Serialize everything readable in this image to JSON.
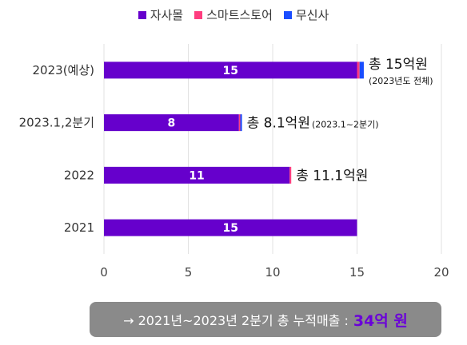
{
  "chart_data": {
    "type": "bar",
    "orientation": "horizontal",
    "stacked": true,
    "categories": [
      "2023(예상)",
      "2023.1,2분기",
      "2022",
      "2021"
    ],
    "series": [
      {
        "name": "자사몰",
        "color": "#6600cc",
        "values": [
          15,
          8,
          11,
          15
        ]
      },
      {
        "name": "스마트스토어",
        "color": "#ff3d7f",
        "values": [
          0.15,
          0.08,
          0.1,
          0
        ]
      },
      {
        "name": "무신사",
        "color": "#1a4dff",
        "values": [
          0.25,
          0.1,
          0,
          0
        ]
      }
    ],
    "data_labels": [
      "15",
      "8",
      "11",
      "15"
    ],
    "annotations": [
      {
        "category": "2023(예상)",
        "main": "총 15억원",
        "sub": "(2023년도 전체)"
      },
      {
        "category": "2023.1,2분기",
        "main": "총 8.1억원",
        "sub": "(2023.1~2분기)"
      },
      {
        "category": "2022",
        "main": "총 11.1억원",
        "sub": ""
      }
    ],
    "xlim": [
      0,
      20
    ],
    "xticks": [
      "0",
      "5",
      "10",
      "15",
      "20"
    ],
    "grid": true,
    "legend_position": "top-center"
  },
  "summary": {
    "text": "→ 2021년~2023년 2분기 총 누적매출 :",
    "highlight": "34억 원",
    "highlight_color": "#6a00d9"
  }
}
